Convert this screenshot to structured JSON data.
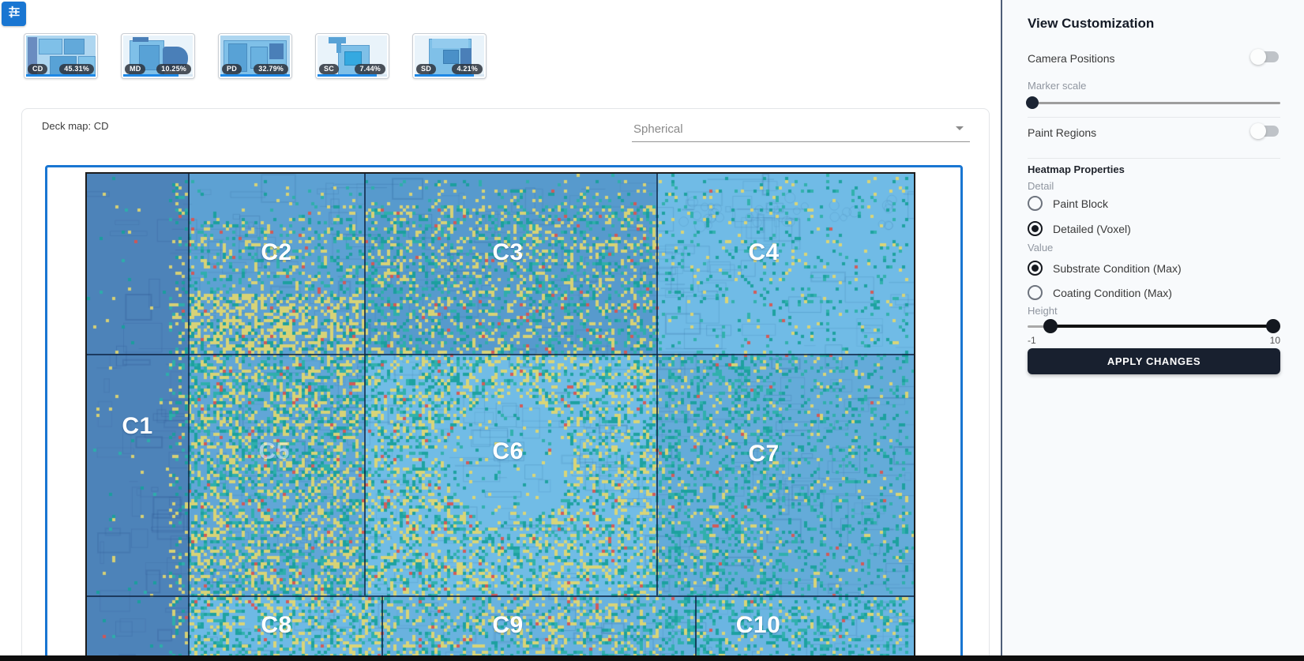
{
  "toolbar": {
    "filter_icon": "tune-sliders-icon"
  },
  "deck_tabs": [
    {
      "code": "CD",
      "pct": "45.31%",
      "selected": true
    },
    {
      "code": "MD",
      "pct": "10.25%",
      "selected": false
    },
    {
      "code": "PD",
      "pct": "32.79%",
      "selected": false
    },
    {
      "code": "SC",
      "pct": "7.44%",
      "selected": false
    },
    {
      "code": "SD",
      "pct": "4.21%",
      "selected": false
    }
  ],
  "map_card": {
    "title": "Deck map: CD",
    "projection_select": {
      "value": "Spherical"
    },
    "regions": [
      {
        "label": "C1"
      },
      {
        "label": "C2"
      },
      {
        "label": "C3"
      },
      {
        "label": "C4"
      },
      {
        "label": "C5"
      },
      {
        "label": "C6"
      },
      {
        "label": "C7"
      },
      {
        "label": "C8"
      },
      {
        "label": "C9"
      },
      {
        "label": "C10"
      }
    ]
  },
  "heatmap": {
    "colors": {
      "teal": "#17a09a",
      "teal2": "#2bb0a8",
      "yellow": "#e2d76f",
      "red": "#d9544e"
    },
    "accent_blue": "#1976d2"
  },
  "panel": {
    "title": "View Customization",
    "camera_positions": {
      "label": "Camera Positions",
      "enabled": false
    },
    "marker_scale": {
      "label": "Marker scale"
    },
    "paint_regions": {
      "label": "Paint Regions",
      "enabled": false
    },
    "heatmap_properties": {
      "title": "Heatmap Properties",
      "detail": {
        "label": "Detail",
        "options": [
          {
            "label": "Paint Block",
            "selected": false
          },
          {
            "label": "Detailed (Voxel)",
            "selected": true
          }
        ]
      },
      "value": {
        "label": "Value",
        "options": [
          {
            "label": "Substrate Condition (Max)",
            "selected": true
          },
          {
            "label": "Coating Condition (Max)",
            "selected": false
          }
        ]
      },
      "height": {
        "label": "Height",
        "min": "-1",
        "max": "10"
      }
    },
    "apply_button": "APPLY CHANGES"
  }
}
